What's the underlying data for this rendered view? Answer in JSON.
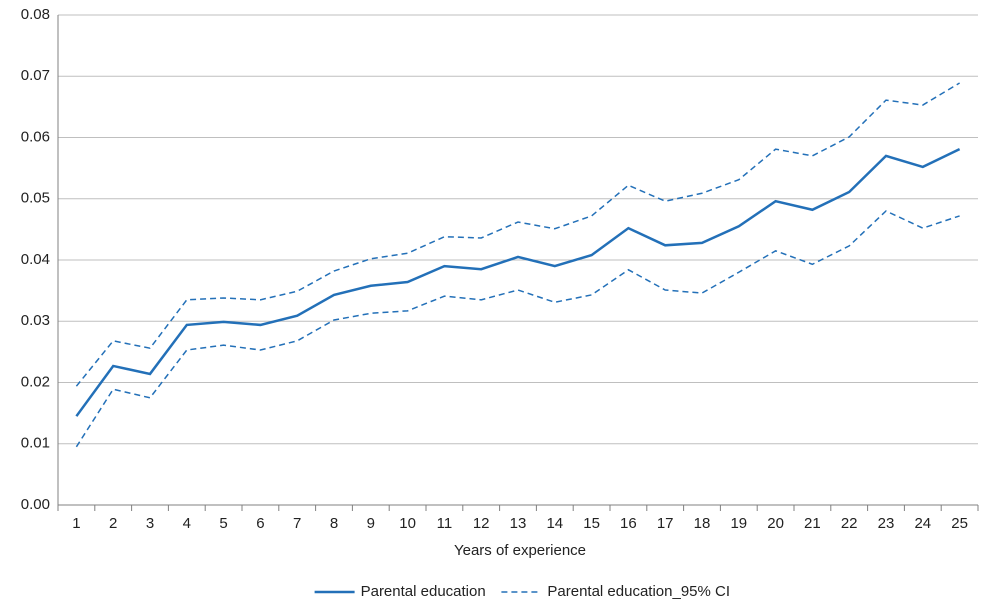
{
  "chart_data": {
    "type": "line",
    "x_label": "Years of experience",
    "categories": [
      "1",
      "2",
      "3",
      "4",
      "5",
      "6",
      "7",
      "8",
      "9",
      "10",
      "11",
      "12",
      "13",
      "14",
      "15",
      "16",
      "17",
      "18",
      "19",
      "20",
      "21",
      "22",
      "23",
      "24",
      "25"
    ],
    "series": [
      {
        "name": "Parental education",
        "color": "#2370b8",
        "dash": false,
        "values": [
          0.0145,
          0.0227,
          0.0214,
          0.0294,
          0.0299,
          0.0294,
          0.0309,
          0.0343,
          0.0358,
          0.0364,
          0.039,
          0.0385,
          0.0405,
          0.039,
          0.0408,
          0.0452,
          0.0424,
          0.0428,
          0.0455,
          0.0496,
          0.0482,
          0.0511,
          0.057,
          0.0552,
          0.0581
        ]
      },
      {
        "name": "Parental education_95% CI",
        "color": "#2370b8",
        "dash": true,
        "values": [
          0.0194,
          0.0268,
          0.0256,
          0.0335,
          0.0338,
          0.0335,
          0.0349,
          0.0382,
          0.0402,
          0.0411,
          0.0438,
          0.0436,
          0.0462,
          0.0451,
          0.0472,
          0.0522,
          0.0496,
          0.0509,
          0.0531,
          0.0581,
          0.057,
          0.0601,
          0.0661,
          0.0653,
          0.0689
        ]
      },
      {
        "color": "#2370b8",
        "dash": true,
        "values": [
          0.0095,
          0.0189,
          0.0175,
          0.0253,
          0.0261,
          0.0253,
          0.0268,
          0.0302,
          0.0313,
          0.0317,
          0.0341,
          0.0335,
          0.0351,
          0.0331,
          0.0343,
          0.0384,
          0.0351,
          0.0346,
          0.038,
          0.0415,
          0.0393,
          0.0423,
          0.048,
          0.0452,
          0.0472
        ]
      }
    ],
    "ylim": [
      0,
      0.08
    ],
    "yticks": [
      {
        "value": 0,
        "label": "0.00"
      },
      0.01,
      0.02,
      0.03,
      0.04,
      0.05,
      0.06,
      0.07,
      0.08
    ],
    "grid": true,
    "legend": "bottom"
  }
}
